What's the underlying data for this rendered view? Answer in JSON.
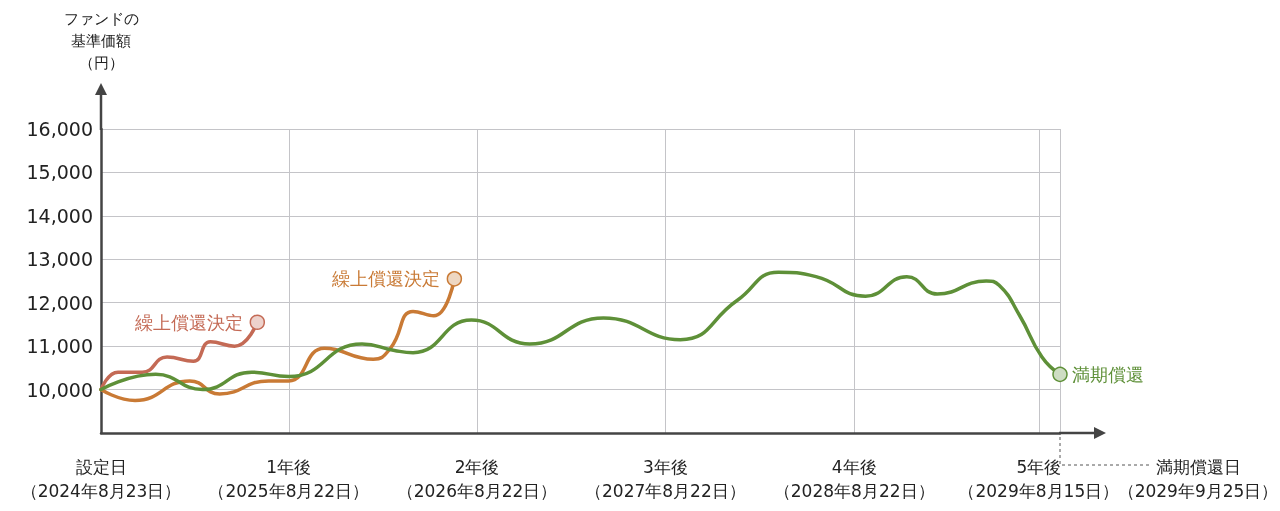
{
  "chart_data": {
    "type": "line",
    "ylabel": "ファンドの基準価額（円）",
    "xlim": [
      "2024-08-23",
      "2029-09-25"
    ],
    "xticks": [
      {
        "value": "2024-08-23",
        "label": "設定日（2024年8月23日）"
      },
      {
        "value": "2025-08-22",
        "label": "1年後（2025年8月22日）"
      },
      {
        "value": "2026-08-22",
        "label": "2年後（2026年8月22日）"
      },
      {
        "value": "2027-08-22",
        "label": "3年後（2027年8月22日）"
      },
      {
        "value": "2028-08-22",
        "label": "4年後（2028年8月22日）"
      },
      {
        "value": "2029-08-15",
        "label": "5年後（2029年8月15日）"
      },
      {
        "value": "2029-09-25",
        "label": null
      }
    ],
    "ylim": [
      9000,
      16000
    ],
    "yticks": [
      {
        "value": 10000,
        "label": "10,000"
      },
      {
        "value": 11000,
        "label": "11,000"
      },
      {
        "value": 12000,
        "label": "12,000"
      },
      {
        "value": 13000,
        "label": "13,000"
      },
      {
        "value": 14000,
        "label": "14,000"
      },
      {
        "value": 15000,
        "label": "15,000"
      },
      {
        "value": 16000,
        "label": "16,000"
      }
    ],
    "grid": true,
    "line_style": "solid",
    "series": [
      {
        "color": "#c46a55",
        "x": [
          "2024-08-23",
          "2024-09-25",
          "2024-11-11",
          "2024-12-29",
          "2025-02-18",
          "2025-03-23",
          "2025-05-09",
          "2025-06-22"
        ],
        "values": [
          10000,
          10400,
          10400,
          10750,
          10650,
          11100,
          11000,
          11550
        ]
      },
      {
        "color": "#c97a35",
        "x": [
          "2024-08-23",
          "2024-10-28",
          "2025-02-11",
          "2025-04-10",
          "2025-07-14",
          "2025-08-22",
          "2025-10-30",
          "2026-02-02",
          "2026-03-07",
          "2026-04-20",
          "2026-05-30",
          "2026-07-09"
        ],
        "values": [
          10000,
          9750,
          10200,
          9900,
          10200,
          10200,
          10950,
          10700,
          10950,
          11800,
          11700,
          12550
        ]
      },
      {
        "color": "#5e9038",
        "x": [
          "2024-08-23",
          "2024-12-07",
          "2025-03-08",
          "2025-06-11",
          "2025-08-22",
          "2026-01-11",
          "2026-03-15",
          "2026-04-20",
          "2026-08-11",
          "2026-12-02",
          "2027-04-24",
          "2027-09-20",
          "2028-01-08",
          "2028-03-28",
          "2028-06-09",
          "2028-09-13",
          "2028-12-02",
          "2029-01-30",
          "2029-05-05",
          "2029-05-30",
          "2029-07-09",
          "2029-08-21",
          "2029-09-25"
        ],
        "values": [
          10000,
          10350,
          10000,
          10400,
          10300,
          11050,
          10900,
          10850,
          11600,
          11050,
          11650,
          11150,
          12050,
          12700,
          12600,
          12150,
          12600,
          12200,
          12500,
          12400,
          11700,
          10750,
          10350
        ]
      }
    ],
    "annotations": [
      {
        "text": "繰上償還決定",
        "x": "2025-06-22",
        "y": 11550
      },
      {
        "text": "繰上償還決定",
        "x": "2026-07-09",
        "y": 12550
      },
      {
        "text": "満期償還",
        "x": "2029-09-25",
        "y": 10350
      },
      "満期償還日（2029年9月25日）"
    ]
  }
}
